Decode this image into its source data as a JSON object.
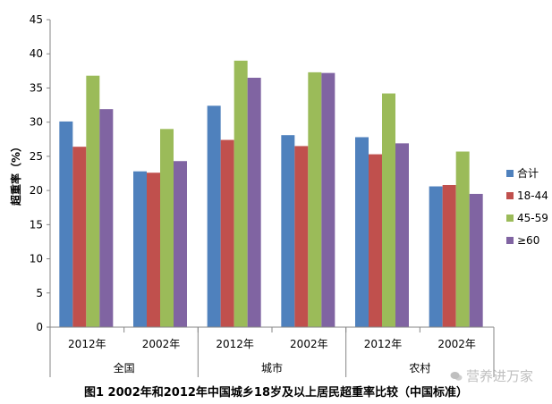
{
  "chart_data": {
    "type": "bar",
    "title": "",
    "ylabel": "超重率（%）",
    "ylim": [
      0,
      45
    ],
    "yticks": [
      0,
      5,
      10,
      15,
      20,
      25,
      30,
      35,
      40,
      45
    ],
    "grid": false,
    "legend_position": "right",
    "groups": [
      {
        "label": "全国",
        "categories": [
          "2012年",
          "2002年"
        ]
      },
      {
        "label": "城市",
        "categories": [
          "2012年",
          "2002年"
        ]
      },
      {
        "label": "农村",
        "categories": [
          "2012年",
          "2002年"
        ]
      }
    ],
    "categories": [
      "2012年",
      "2002年",
      "2012年",
      "2002年",
      "2012年",
      "2002年"
    ],
    "series": [
      {
        "name": "合计",
        "color": "#4f81bd",
        "values": [
          30.1,
          22.8,
          32.4,
          28.1,
          27.8,
          20.6
        ]
      },
      {
        "name": "18-44",
        "color": "#c0504d",
        "values": [
          26.4,
          22.6,
          27.4,
          26.5,
          25.3,
          20.8
        ]
      },
      {
        "name": "45-59",
        "color": "#9bbb59",
        "values": [
          36.8,
          29.0,
          39.0,
          37.3,
          34.2,
          25.7
        ]
      },
      {
        "name": "≥60",
        "color": "#8064a2",
        "values": [
          31.9,
          24.3,
          36.5,
          37.2,
          26.9,
          19.5
        ]
      }
    ]
  },
  "caption": "图1  2002年和2012年中国城乡18岁及以上居民超重率比较（中国标准）",
  "watermark": "营养进万家"
}
